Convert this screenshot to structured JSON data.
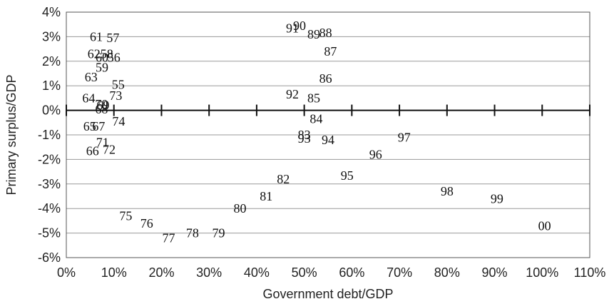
{
  "chart_data": {
    "type": "scatter",
    "title": "",
    "xlabel": "Government debt/GDP",
    "ylabel": "Primary surplus/GDP",
    "xlim": [
      0,
      110
    ],
    "ylim": [
      -6,
      4
    ],
    "xticks": [
      0,
      10,
      20,
      30,
      40,
      50,
      60,
      70,
      80,
      90,
      100,
      110
    ],
    "xtick_labels": [
      "0%",
      "10%",
      "20%",
      "30%",
      "40%",
      "50%",
      "60%",
      "70%",
      "80%",
      "90%",
      "100%",
      "110%"
    ],
    "yticks": [
      4,
      3,
      2,
      1,
      0,
      -1,
      -2,
      -3,
      -4,
      -5,
      -6
    ],
    "ytick_labels": [
      "4%",
      "3%",
      "2%",
      "1%",
      "0%",
      "-1%",
      "-2%",
      "-3%",
      "-4%",
      "-5%",
      "-6%"
    ],
    "grid": "horizontal",
    "marker": "year-label",
    "points": [
      {
        "label": "61",
        "x": 6.3,
        "y": 3.0
      },
      {
        "label": "57",
        "x": 9.8,
        "y": 2.95
      },
      {
        "label": "62",
        "x": 5.8,
        "y": 2.3
      },
      {
        "label": "58",
        "x": 8.5,
        "y": 2.3
      },
      {
        "label": "60",
        "x": 7.5,
        "y": 2.15
      },
      {
        "label": "56",
        "x": 10.0,
        "y": 2.15
      },
      {
        "label": "59",
        "x": 7.5,
        "y": 1.75
      },
      {
        "label": "63",
        "x": 5.2,
        "y": 1.35
      },
      {
        "label": "55",
        "x": 10.9,
        "y": 1.05
      },
      {
        "label": "73",
        "x": 10.4,
        "y": 0.6
      },
      {
        "label": "64",
        "x": 4.7,
        "y": 0.5
      },
      {
        "label": "70",
        "x": 7.4,
        "y": 0.25
      },
      {
        "label": "69",
        "x": 7.7,
        "y": 0.2
      },
      {
        "label": "68",
        "x": 7.4,
        "y": 0.05
      },
      {
        "label": "74",
        "x": 11.0,
        "y": -0.45
      },
      {
        "label": "65",
        "x": 4.9,
        "y": -0.65
      },
      {
        "label": "67",
        "x": 6.8,
        "y": -0.65
      },
      {
        "label": "71",
        "x": 7.6,
        "y": -1.3
      },
      {
        "label": "66",
        "x": 5.5,
        "y": -1.65
      },
      {
        "label": "72",
        "x": 9.0,
        "y": -1.6
      },
      {
        "label": "75",
        "x": 12.5,
        "y": -4.3
      },
      {
        "label": "76",
        "x": 16.9,
        "y": -4.6
      },
      {
        "label": "77",
        "x": 21.5,
        "y": -5.2
      },
      {
        "label": "78",
        "x": 26.5,
        "y": -5.0
      },
      {
        "label": "79",
        "x": 32.0,
        "y": -5.0
      },
      {
        "label": "80",
        "x": 36.5,
        "y": -4.0
      },
      {
        "label": "81",
        "x": 42.0,
        "y": -3.5
      },
      {
        "label": "82",
        "x": 45.6,
        "y": -2.8
      },
      {
        "label": "83",
        "x": 50.0,
        "y": -1.0
      },
      {
        "label": "93",
        "x": 50.0,
        "y": -1.15
      },
      {
        "label": "84",
        "x": 52.5,
        "y": -0.35
      },
      {
        "label": "94",
        "x": 55.0,
        "y": -1.2
      },
      {
        "label": "95",
        "x": 59.0,
        "y": -2.65
      },
      {
        "label": "96",
        "x": 65.0,
        "y": -1.8
      },
      {
        "label": "97",
        "x": 71.0,
        "y": -1.1
      },
      {
        "label": "98",
        "x": 80.0,
        "y": -3.3
      },
      {
        "label": "99",
        "x": 90.5,
        "y": -3.6
      },
      {
        "label": "00",
        "x": 100.5,
        "y": -4.7
      },
      {
        "label": "91",
        "x": 47.5,
        "y": 3.35
      },
      {
        "label": "90",
        "x": 49.0,
        "y": 3.45
      },
      {
        "label": "89",
        "x": 52.0,
        "y": 3.1
      },
      {
        "label": "88",
        "x": 54.5,
        "y": 3.15
      },
      {
        "label": "87",
        "x": 55.5,
        "y": 2.4
      },
      {
        "label": "86",
        "x": 54.5,
        "y": 1.3
      },
      {
        "label": "92",
        "x": 47.5,
        "y": 0.65
      },
      {
        "label": "85",
        "x": 52.0,
        "y": 0.5
      }
    ]
  }
}
